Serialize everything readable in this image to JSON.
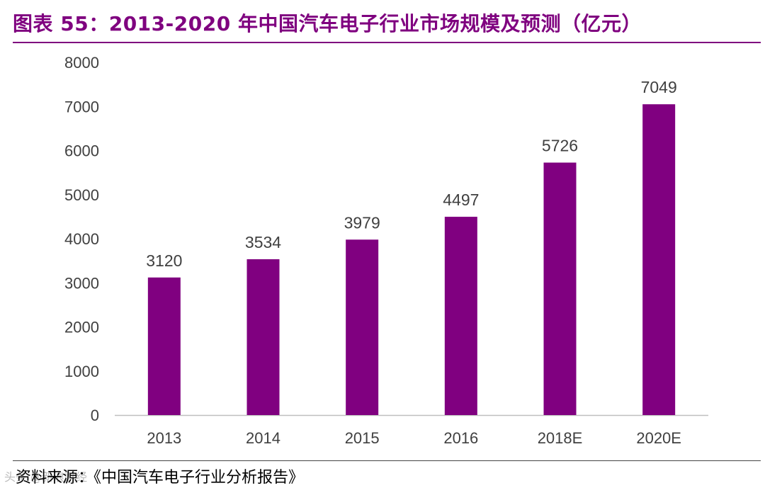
{
  "header": {
    "title": "图表 55：2013-2020 年中国汽车电子行业市场规模及预测（亿元）"
  },
  "footer": {
    "source": "资料来源：《中国汽车电子行业分析报告》",
    "watermark": "头条 @新浪财经"
  },
  "colors": {
    "accent": "#7f007f",
    "bar": "#800080",
    "axis": "#bfbfbf",
    "text": "#404040"
  },
  "chart_data": {
    "type": "bar",
    "title": "2013-2020 年中国汽车电子行业市场规模及预测（亿元）",
    "categories": [
      "2013",
      "2014",
      "2015",
      "2016",
      "2018E",
      "2020E"
    ],
    "values": [
      3120,
      3534,
      3979,
      4497,
      5726,
      7049
    ],
    "data_labels": [
      "3120",
      "3534",
      "3979",
      "4497",
      "5726",
      "7049"
    ],
    "yticks": [
      "0",
      "1000",
      "2000",
      "3000",
      "4000",
      "5000",
      "6000",
      "7000",
      "8000"
    ],
    "ylim": [
      0,
      8000
    ],
    "xlabel": "",
    "ylabel": "",
    "grid": false,
    "legend": "none"
  }
}
